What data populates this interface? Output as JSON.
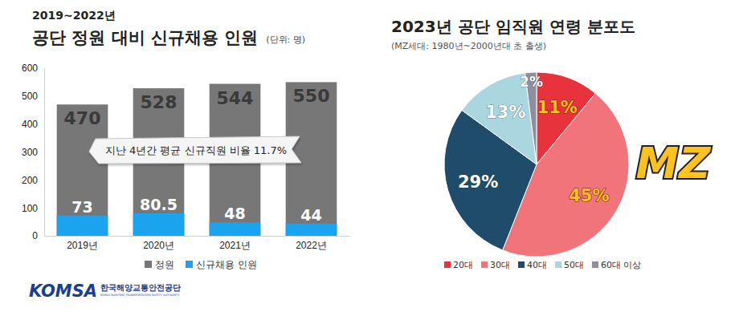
{
  "chart_data": [
    {
      "type": "bar",
      "subtitle": "2019~2022년",
      "title": "공단 정원 대비 신규채용 인원",
      "unit": "(단위: 명)",
      "categories": [
        "2019년",
        "2020년",
        "2021년",
        "2022년"
      ],
      "series": [
        {
          "name": "정원",
          "color": "#777777",
          "values": [
            470,
            528,
            544,
            550
          ]
        },
        {
          "name": "신규채용 인원",
          "color": "#1aa3ef",
          "values": [
            73,
            80.5,
            48,
            44
          ]
        }
      ],
      "ylim": [
        0,
        600
      ],
      "yticks": [
        0,
        100,
        200,
        300,
        400,
        500,
        600
      ],
      "annotation": "지난 4년간 평균 신규직원 비율 11.7%",
      "data_labels": true,
      "legend": "bottom",
      "grid": false,
      "stacked": false
    },
    {
      "type": "pie",
      "title": "2023년 공단 임직원 연령 분포도",
      "subtitle": "(MZ세대: 1980년~2000년대 초 출생)",
      "categories": [
        "20대",
        "30대",
        "40대",
        "50대",
        "60대 이상"
      ],
      "values": [
        11,
        45,
        29,
        13,
        2
      ],
      "value_labels": [
        "11%",
        "45%",
        "29%",
        "13%",
        "2%"
      ],
      "colors": [
        "#e8323c",
        "#f2747b",
        "#1f4c6b",
        "#a9d6df",
        "#8e8f9e"
      ],
      "data_labels": true,
      "legend": "bottom",
      "annotation": "MZ"
    }
  ],
  "logo": {
    "name": "KOMSA",
    "org": "한국해양교통안전공단",
    "org_en": "KOREA MARITIME TRANSPORTATION SAFETY AUTHORITY"
  }
}
